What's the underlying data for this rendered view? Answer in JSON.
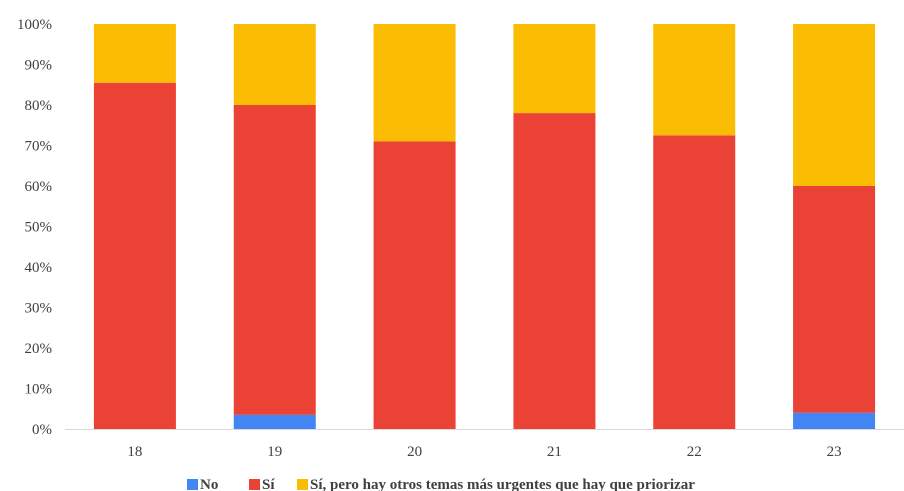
{
  "chart_data": {
    "type": "bar",
    "stacked": true,
    "categories": [
      "18",
      "19",
      "20",
      "21",
      "22",
      "23"
    ],
    "series": [
      {
        "name": "No",
        "color": "#4285f4",
        "values": [
          0,
          3.5,
          0,
          0,
          0,
          4
        ]
      },
      {
        "name": "Sí",
        "color": "#ea4335",
        "values": [
          85.5,
          76.5,
          71,
          78,
          72.5,
          56
        ]
      },
      {
        "name": "Sí, pero hay otros temas más urgentes que hay que priorizar",
        "color": "#fbbc04",
        "values": [
          14.5,
          20,
          29,
          22,
          27.5,
          40
        ]
      }
    ],
    "ylim": [
      0,
      100
    ],
    "yticks": [
      "0%",
      "10%",
      "20%",
      "30%",
      "40%",
      "50%",
      "60%",
      "70%",
      "80%",
      "90%",
      "100%"
    ],
    "title": "",
    "xlabel": "",
    "ylabel": "",
    "grid": false,
    "legend": "bottom"
  }
}
